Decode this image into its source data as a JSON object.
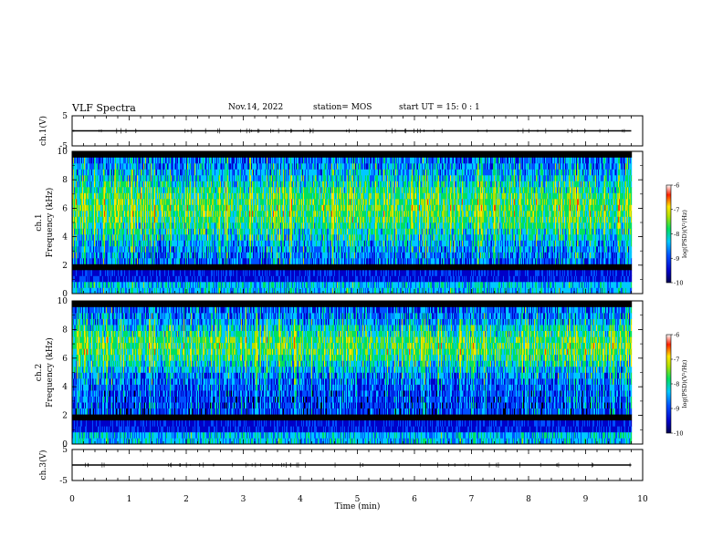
{
  "header": {
    "title": "VLF Spectra",
    "date": "Nov.14, 2022",
    "station": "station= MOS",
    "start": "start  UT =   15: 0  : 1"
  },
  "chart_data": [
    {
      "type": "line",
      "panel": "ch1-waveform",
      "ylabel": "ch.1(V)",
      "ylim": [
        -5,
        5
      ],
      "yticks": [
        "5",
        "-5"
      ],
      "x_range": [
        0,
        9.8
      ],
      "trace_level": 0
    },
    {
      "type": "heatmap",
      "panel": "ch1-spectrogram",
      "ylabel_line1": "ch.1",
      "ylabel_line2": "Frequency (kHz)",
      "ylim": [
        0,
        10
      ],
      "yticks": [
        "0",
        "2",
        "4",
        "6",
        "8",
        "10"
      ],
      "x_range": [
        0,
        9.8
      ],
      "colorbar": {
        "label": "log(PSD)(V²/Hz)",
        "ticks": [
          "-6",
          "-7",
          "-8",
          "-9",
          "-10"
        ],
        "range": [
          -10,
          -6
        ]
      },
      "colors": [
        "#000000",
        "#0000c8",
        "#0050ff",
        "#00c8ff",
        "#00e060",
        "#b0e000",
        "#ffe600",
        "#ff4000"
      ]
    },
    {
      "type": "heatmap",
      "panel": "ch2-spectrogram",
      "ylabel_line1": "ch.2",
      "ylabel_line2": "Frequency (kHz)",
      "ylim": [
        0,
        10
      ],
      "yticks": [
        "0",
        "2",
        "4",
        "6",
        "8",
        "10"
      ],
      "x_range": [
        0,
        9.8
      ],
      "colorbar": {
        "label": "log(PSD)(V²/Hz)",
        "ticks": [
          "-6",
          "-7",
          "-8",
          "-9",
          "-10"
        ],
        "range": [
          -10,
          -6
        ]
      },
      "colors": [
        "#000000",
        "#0000c8",
        "#0050ff",
        "#00c8ff",
        "#00e060",
        "#b0e000",
        "#ffe600",
        "#ff4000"
      ]
    },
    {
      "type": "line",
      "panel": "ch3-waveform",
      "ylabel": "ch.3(V)",
      "ylim": [
        -5,
        5
      ],
      "yticks": [
        "5",
        "-5"
      ],
      "x_range": [
        0,
        9.8
      ],
      "trace_level": 0
    }
  ],
  "x_axis": {
    "label": "Time  (min)",
    "range": [
      0,
      10
    ],
    "ticks": [
      "0",
      "1",
      "2",
      "3",
      "4",
      "5",
      "6",
      "7",
      "8",
      "9",
      "10"
    ]
  }
}
